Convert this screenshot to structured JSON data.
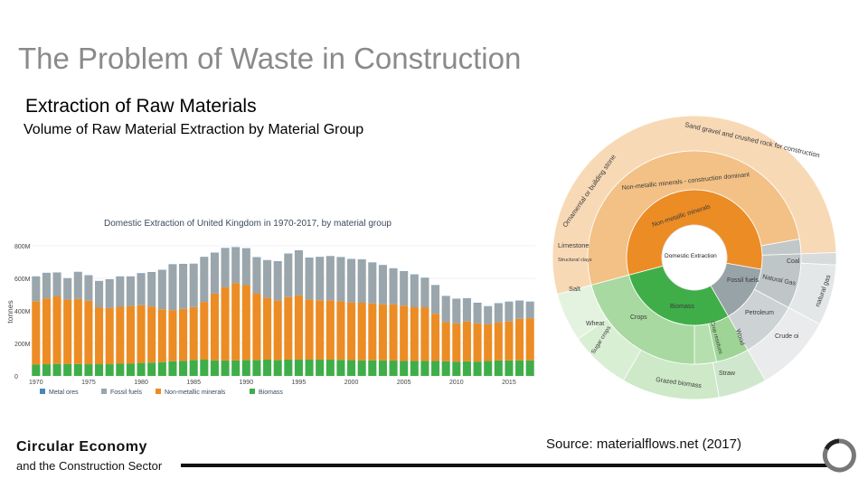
{
  "slide": {
    "title": "The Problem of Waste in Construction",
    "heading": "Extraction of Raw Materials",
    "subheading": "Volume of Raw Material Extraction by Material Group",
    "footer_title": "Circular Economy",
    "footer_sub": "and the Construction Sector",
    "source": "Source: materialflows.net (2017)"
  },
  "colors": {
    "metal": "#4a86b8",
    "fossil": "#9aa6ab",
    "nonmetal": "#ec8c24",
    "biomass": "#3fae49"
  },
  "chart_data": [
    {
      "type": "bar",
      "stacked": true,
      "title": "Domestic Extraction of United Kingdom in 1970-2017, by material group",
      "ylabel": "tonnes",
      "ylim": [
        0,
        850
      ],
      "yticks": [
        "0",
        "200M",
        "400M",
        "600M",
        "800M"
      ],
      "ytick_values": [
        0,
        200,
        400,
        600,
        800
      ],
      "xtick_labels": [
        "1970",
        "1975",
        "1980",
        "1985",
        "1990",
        "1995",
        "2000",
        "2005",
        "2010",
        "2015"
      ],
      "categories": [
        1970,
        1971,
        1972,
        1973,
        1974,
        1975,
        1976,
        1977,
        1978,
        1979,
        1980,
        1981,
        1982,
        1983,
        1984,
        1985,
        1986,
        1987,
        1988,
        1989,
        1990,
        1991,
        1992,
        1993,
        1994,
        1995,
        1996,
        1997,
        1998,
        1999,
        2000,
        2001,
        2002,
        2003,
        2004,
        2005,
        2006,
        2007,
        2008,
        2009,
        2010,
        2011,
        2012,
        2013,
        2014,
        2015,
        2016,
        2017
      ],
      "series": [
        {
          "name": "Metal ores",
          "values": [
            2,
            2,
            2,
            2,
            2,
            2,
            2,
            2,
            2,
            2,
            2,
            2,
            2,
            2,
            2,
            2,
            2,
            2,
            2,
            2,
            2,
            2,
            2,
            2,
            2,
            2,
            2,
            2,
            2,
            2,
            2,
            2,
            2,
            2,
            2,
            2,
            2,
            2,
            2,
            2,
            2,
            2,
            2,
            2,
            2,
            2,
            2,
            2
          ]
        },
        {
          "name": "Fossil fuels",
          "values": [
            150,
            155,
            145,
            130,
            165,
            155,
            160,
            175,
            185,
            180,
            195,
            210,
            240,
            280,
            275,
            265,
            275,
            250,
            240,
            220,
            225,
            220,
            230,
            240,
            265,
            275,
            255,
            265,
            270,
            270,
            265,
            265,
            250,
            240,
            220,
            210,
            200,
            180,
            175,
            160,
            150,
            140,
            125,
            110,
            115,
            120,
            110,
            100
          ]
        },
        {
          "name": "Non-metallic minerals",
          "values": [
            390,
            405,
            415,
            395,
            400,
            390,
            350,
            345,
            350,
            355,
            355,
            345,
            325,
            315,
            320,
            325,
            355,
            410,
            450,
            475,
            460,
            410,
            380,
            365,
            385,
            395,
            370,
            365,
            365,
            360,
            355,
            355,
            350,
            345,
            345,
            340,
            330,
            330,
            290,
            240,
            235,
            245,
            235,
            225,
            235,
            240,
            255,
            260
          ]
        },
        {
          "name": "Biomass",
          "values": [
            70,
            72,
            74,
            74,
            73,
            72,
            72,
            72,
            75,
            75,
            80,
            82,
            85,
            90,
            92,
            98,
            100,
            96,
            95,
            95,
            98,
            98,
            100,
            98,
            100,
            100,
            100,
            100,
            100,
            99,
            97,
            95,
            96,
            95,
            95,
            92,
            92,
            92,
            92,
            90,
            88,
            90,
            88,
            92,
            95,
            95,
            96,
            95
          ]
        }
      ]
    },
    {
      "type": "sunburst",
      "root": "Domestic Extraction",
      "groups": [
        {
          "name": "Non-metallic minerals",
          "share": 0.58
        },
        {
          "name": "Biomass",
          "share": 0.24
        },
        {
          "name": "Fossil fuels",
          "share": 0.18
        }
      ],
      "labels": {
        "sand": "Sand gravel and crushed rock for construction",
        "ornamental": "Ornamental or building stone",
        "nmm_construction": "Non-metallic minerals - construction dominant",
        "nmm": "Non-metallic minerals",
        "limestone": "Limestone",
        "structural_clays": "Structural clays",
        "salt": "Salt",
        "root": "Domestic Extraction",
        "fossil": "Fossil fuels",
        "natural_gas": "Natural Gas",
        "natural_gas_outer": "natural gas",
        "coal": "Coal",
        "petroleum": "Petroleum",
        "crude": "Crude oi",
        "biomass": "Biomass",
        "crops": "Crops",
        "crop_residues": "Crop residues",
        "wood": "Wood",
        "wheat": "Wheat",
        "sugar_crops": "Sugar crops",
        "straw": "Straw",
        "grazed": "Grazed biomass"
      }
    }
  ]
}
